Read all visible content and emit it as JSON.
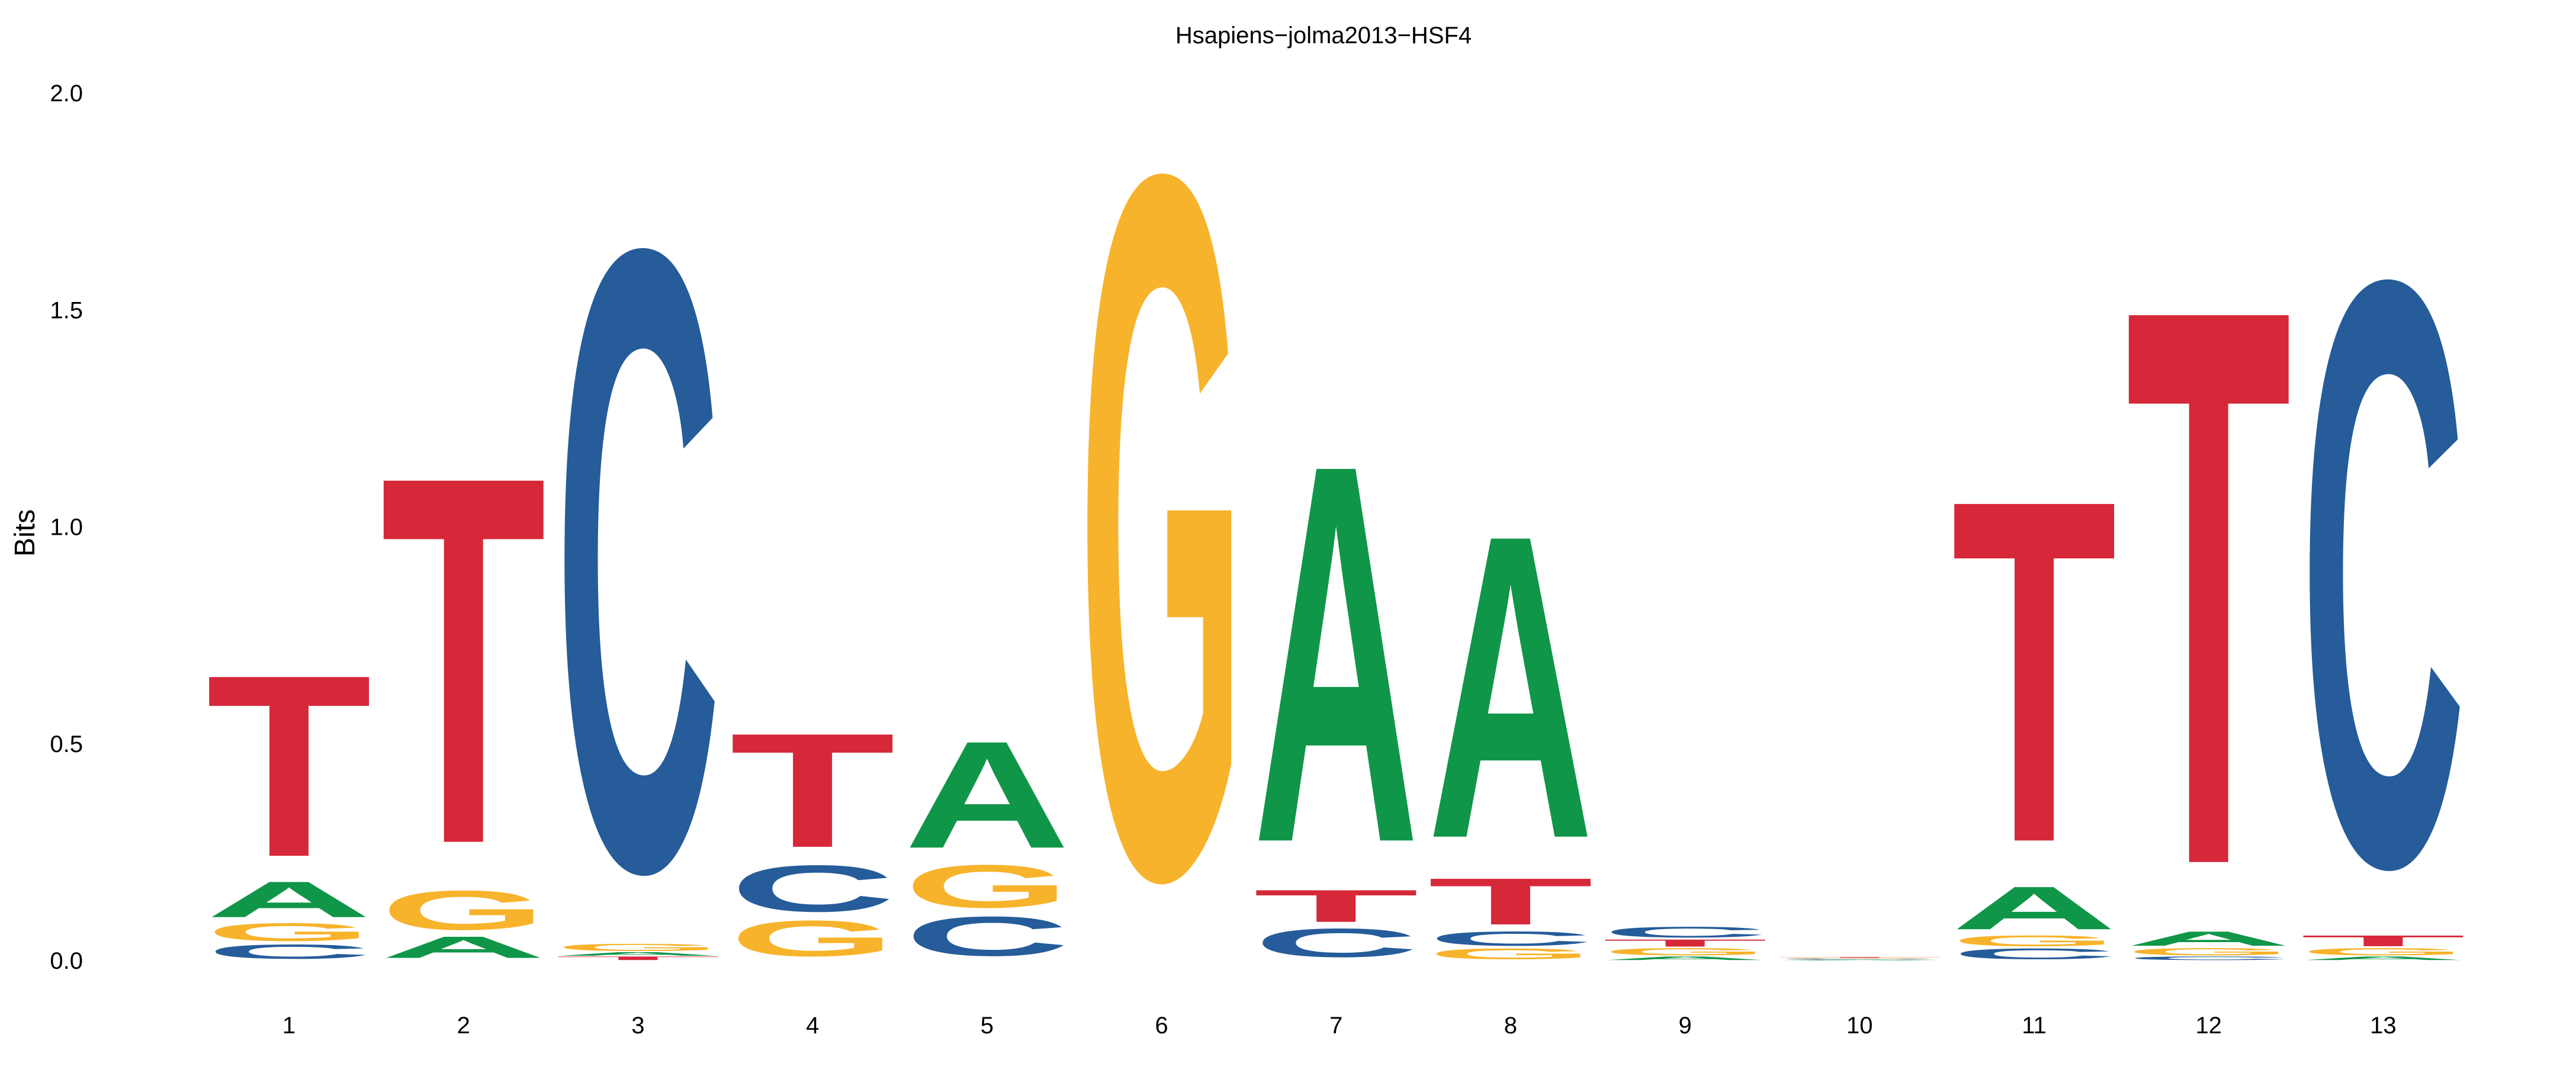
{
  "chart_data": {
    "type": "sequence-logo",
    "title": "Hsapiens−jolma2013−HSF4",
    "ylabel": "Bits",
    "xlabel": "",
    "ylim": [
      0,
      2
    ],
    "yticks": [
      "0.0",
      "0.5",
      "1.0",
      "1.5",
      "2.0"
    ],
    "ytick_values": [
      0,
      0.5,
      1.0,
      1.5,
      2.0
    ],
    "colors": {
      "A": "#109648",
      "C": "#255C99",
      "G": "#F7B32B",
      "T": "#D62839"
    },
    "positions": [
      {
        "label": "1",
        "letters": [
          {
            "base": "C",
            "bits": 0.04
          },
          {
            "base": "G",
            "bits": 0.05
          },
          {
            "base": "A",
            "bits": 0.1
          },
          {
            "base": "T",
            "bits": 0.51
          }
        ]
      },
      {
        "label": "2",
        "letters": [
          {
            "base": "A",
            "bits": 0.06
          },
          {
            "base": "G",
            "bits": 0.11
          },
          {
            "base": "T",
            "bits": 1.03
          }
        ]
      },
      {
        "label": "3",
        "letters": [
          {
            "base": "T",
            "bits": 0.01
          },
          {
            "base": "A",
            "bits": 0.01
          },
          {
            "base": "G",
            "bits": 0.02
          },
          {
            "base": "C",
            "bits": 1.74
          }
        ]
      },
      {
        "label": "4",
        "letters": [
          {
            "base": "G",
            "bits": 0.1
          },
          {
            "base": "C",
            "bits": 0.13
          },
          {
            "base": "T",
            "bits": 0.32
          }
        ]
      },
      {
        "label": "5",
        "letters": [
          {
            "base": "C",
            "bits": 0.11
          },
          {
            "base": "G",
            "bits": 0.12
          },
          {
            "base": "A",
            "bits": 0.3
          }
        ]
      },
      {
        "label": "6",
        "letters": [
          {
            "base": "G",
            "bits": 1.97
          }
        ]
      },
      {
        "label": "7",
        "letters": [
          {
            "base": "C",
            "bits": 0.08
          },
          {
            "base": "T",
            "bits": 0.09
          },
          {
            "base": "A",
            "bits": 1.06
          }
        ]
      },
      {
        "label": "8",
        "letters": [
          {
            "base": "G",
            "bits": 0.03
          },
          {
            "base": "C",
            "bits": 0.04
          },
          {
            "base": "T",
            "bits": 0.13
          },
          {
            "base": "A",
            "bits": 0.85
          }
        ]
      },
      {
        "label": "9",
        "letters": [
          {
            "base": "A",
            "bits": 0.01
          },
          {
            "base": "G",
            "bits": 0.02
          },
          {
            "base": "T",
            "bits": 0.02
          },
          {
            "base": "C",
            "bits": 0.03
          }
        ]
      },
      {
        "label": "10",
        "letters": [
          {
            "base": "A",
            "bits": 0.002
          },
          {
            "base": "C",
            "bits": 0.002
          },
          {
            "base": "G",
            "bits": 0.002
          },
          {
            "base": "T",
            "bits": 0.002
          }
        ]
      },
      {
        "label": "11",
        "letters": [
          {
            "base": "C",
            "bits": 0.03
          },
          {
            "base": "G",
            "bits": 0.03
          },
          {
            "base": "A",
            "bits": 0.12
          },
          {
            "base": "T",
            "bits": 0.96
          }
        ]
      },
      {
        "label": "12",
        "letters": [
          {
            "base": "C",
            "bits": 0.01
          },
          {
            "base": "G",
            "bits": 0.02
          },
          {
            "base": "A",
            "bits": 0.04
          },
          {
            "base": "T",
            "bits": 1.56
          }
        ]
      },
      {
        "label": "13",
        "letters": [
          {
            "base": "A",
            "bits": 0.01
          },
          {
            "base": "G",
            "bits": 0.02
          },
          {
            "base": "T",
            "bits": 0.03
          },
          {
            "base": "C",
            "bits": 1.64
          }
        ]
      }
    ]
  }
}
